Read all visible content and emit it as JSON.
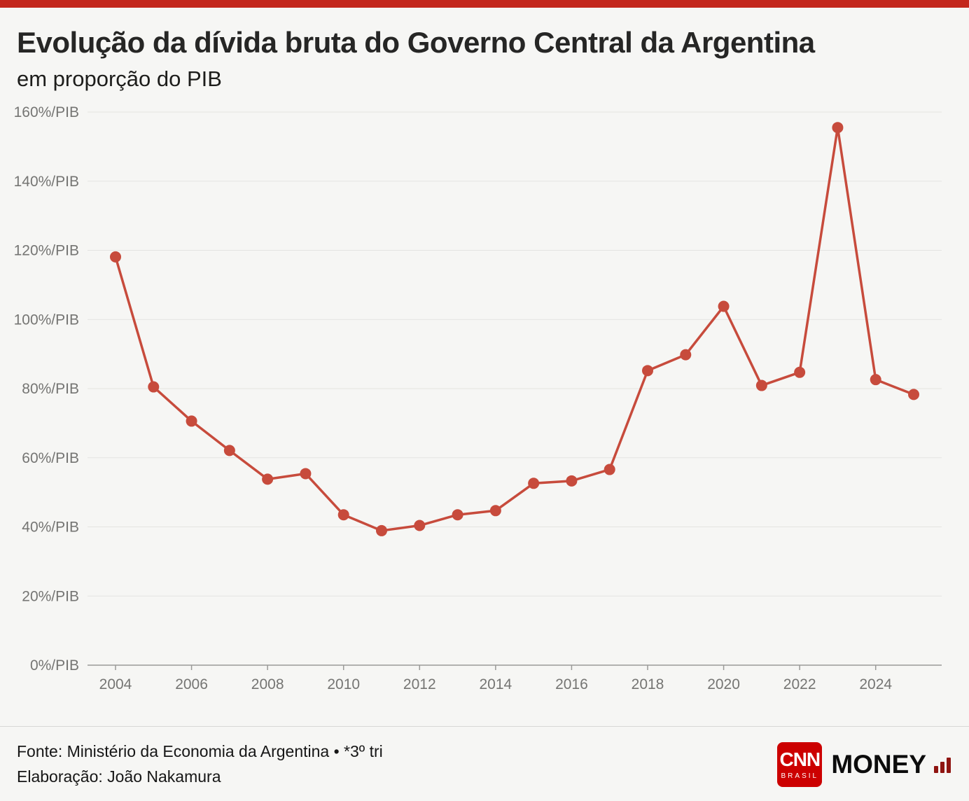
{
  "page": {
    "title": "Evolução da dívida bruta do Governo Central da Argentina",
    "subtitle": "em proporção do PIB"
  },
  "footer": {
    "source": "Fonte: Ministério da Economia da Argentina • *3º tri",
    "elaboration": "Elaboração: João Nakamura",
    "brand": {
      "cnn": "CNN",
      "brasil": "BRASIL",
      "money": "MONEY"
    }
  },
  "colors": {
    "background": "#f6f6f4",
    "top_bar": "#c3271d",
    "cnn_red": "#cc0000",
    "grid": "#e4e4e1",
    "axis": "#9a9a98",
    "tick_label": "#757573"
  },
  "chart_data": {
    "type": "line",
    "title": "Evolução da dívida bruta do Governo Central da Argentina",
    "subtitle": "em proporção do PIB",
    "x": [
      2004,
      2005,
      2006,
      2007,
      2008,
      2009,
      2010,
      2011,
      2012,
      2013,
      2014,
      2015,
      2016,
      2017,
      2018,
      2019,
      2020,
      2021,
      2022,
      2023,
      2024,
      2025
    ],
    "values": [
      118.1,
      80.5,
      70.6,
      62.1,
      53.8,
      55.4,
      43.5,
      38.9,
      40.4,
      43.5,
      44.7,
      52.6,
      53.3,
      56.6,
      85.2,
      89.8,
      103.8,
      80.9,
      84.7,
      155.5,
      82.6,
      78.3
    ],
    "unit": "%/PIB",
    "note": "*3º tri (2025)",
    "ylim": [
      0,
      160
    ],
    "xlim": [
      2004,
      2025
    ],
    "yticks": [
      0,
      20,
      40,
      60,
      80,
      100,
      120,
      140,
      160
    ],
    "ytick_labels": [
      "0%/PIB",
      "20%/PIB",
      "40%/PIB",
      "60%/PIB",
      "80%/PIB",
      "100%/PIB",
      "120%/PIB",
      "140%/PIB",
      "160%/PIB"
    ],
    "xticks": [
      2004,
      2006,
      2008,
      2010,
      2012,
      2014,
      2016,
      2018,
      2020,
      2022,
      2024
    ],
    "xtick_labels": [
      "2004",
      "2006",
      "2008",
      "2010",
      "2012",
      "2014",
      "2016",
      "2018",
      "2020",
      "2022",
      "2024"
    ],
    "grid": true,
    "legend": "none",
    "line_color": "#c74b3c",
    "marker_radius": 8
  }
}
